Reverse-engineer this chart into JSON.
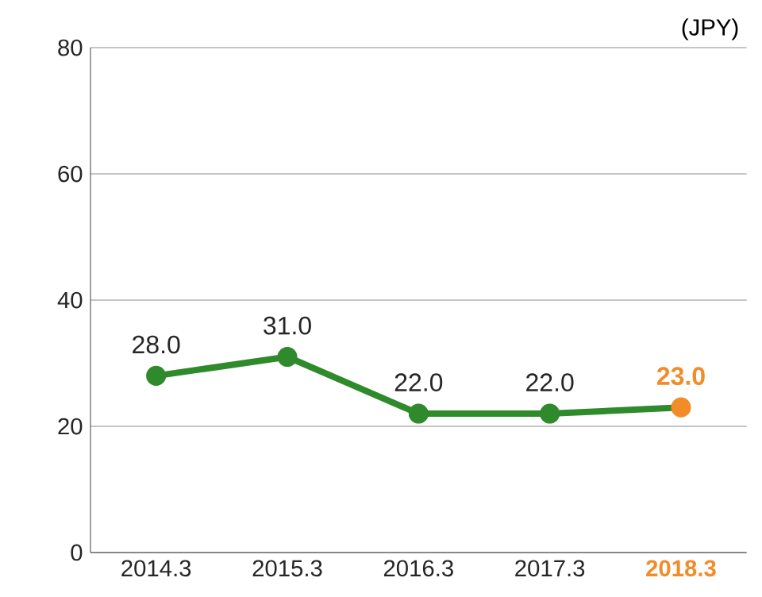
{
  "chart_data": {
    "type": "line",
    "ylabel": "(JPY)",
    "categories": [
      "2014.3",
      "2015.3",
      "2016.3",
      "2017.3",
      "2018.3"
    ],
    "series": [
      {
        "color": "#2e8a2a",
        "values": [
          28,
          31,
          22,
          22,
          23
        ],
        "colors": [
          "#2e8a2a",
          "#2e8a2a",
          "#2e8a2a",
          "#2e8a2a",
          "#f28c28"
        ],
        "value_labels": [
          "28.0",
          "31.0",
          "22.0",
          "22.0",
          "23.0"
        ]
      }
    ],
    "ylim": [
      0,
      80
    ],
    "yticks": [
      0,
      20,
      40,
      60,
      80
    ],
    "grid": "y",
    "marker": "circle",
    "line_style": "solid"
  }
}
